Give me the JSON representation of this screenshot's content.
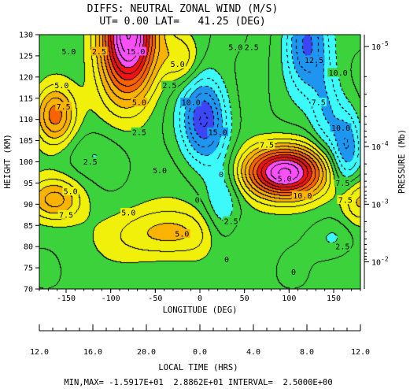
{
  "header": {
    "title_line1": "DIFFS: NEUTRAL ZONAL WIND (M/S)",
    "title_line2": "UT= 0.00 LAT=   41.25 (DEG)"
  },
  "footer": {
    "summary": "MIN,MAX= -1.5917E+01  2.8862E+01 INTERVAL=  2.5000E+00"
  },
  "chart_data": {
    "type": "heatmap",
    "subtype": "filled-contour",
    "title": "DIFFS: NEUTRAL ZONAL WIND (M/S)",
    "subtitle": "UT= 0.00 LAT=   41.25 (DEG)",
    "xlabel": "LONGITUDE (DEG)",
    "ylabel": "HEIGHT (KM)",
    "right_axis_label": "PRESSURE (Mb)",
    "top_axis_label": "LOCAL TIME (HRS)",
    "xlim": [
      -180,
      180
    ],
    "ylim": [
      70,
      130
    ],
    "x_ticks": [
      -150,
      -100,
      -50,
      0,
      50,
      100,
      150
    ],
    "x_tick_labels": [
      "-150",
      "-100",
      "-50",
      "0",
      "50",
      "100",
      "150"
    ],
    "y_ticks": [
      70,
      75,
      80,
      85,
      90,
      95,
      100,
      105,
      110,
      115,
      120,
      125,
      130
    ],
    "y_tick_labels": [
      "70",
      "75",
      "80",
      "85",
      "90",
      "95",
      "100",
      "105",
      "110",
      "115",
      "120",
      "125",
      "130"
    ],
    "pressure_ticks": [
      {
        "label": "10",
        "exp": "-5",
        "height": 127.2
      },
      {
        "label": "10",
        "exp": "-4",
        "height": 103.6
      },
      {
        "label": "10",
        "exp": "-3",
        "height": 90.0
      },
      {
        "label": "10",
        "exp": "-2",
        "height": 76.4
      }
    ],
    "local_time_ticks": [
      "12.0",
      "16.0",
      "20.0",
      "0.0",
      "4.0",
      "8.0",
      "12.0"
    ],
    "min": -15.917,
    "max": 28.862,
    "interval": 2.5,
    "grid": false,
    "colorscale": [
      {
        "min": -20.0,
        "max": -15.0,
        "color": "#d400f0"
      },
      {
        "min": -15.0,
        "max": -10.0,
        "color": "#3c46f5"
      },
      {
        "min": -10.0,
        "max": -5.0,
        "color": "#1e96f0"
      },
      {
        "min": -5.0,
        "max": 0.0,
        "color": "#3cfafa"
      },
      {
        "min": 0.0,
        "max": 5.0,
        "color": "#3cd23c"
      },
      {
        "min": 5.0,
        "max": 10.0,
        "color": "#f0f00a"
      },
      {
        "min": 10.0,
        "max": 15.0,
        "color": "#fab400"
      },
      {
        "min": 15.0,
        "max": 20.0,
        "color": "#fa6400"
      },
      {
        "min": 20.0,
        "max": 25.0,
        "color": "#f01414"
      },
      {
        "min": 25.0,
        "max": 35.0,
        "color": "#fa50fa"
      }
    ],
    "features": [
      {
        "lon": 95,
        "h": 97.5,
        "value": 27,
        "sx": 32,
        "sy": 4.2,
        "rot": -0.5
      },
      {
        "lon": -80,
        "h": 130,
        "value": 30,
        "sx": 22,
        "sy": 10,
        "rot": 0.9
      },
      {
        "lon": 5,
        "h": 110,
        "value": -16,
        "sx": 18,
        "sy": 7,
        "rot": 0.2
      },
      {
        "lon": 120,
        "h": 128,
        "value": -14,
        "sx": 17,
        "sy": 8,
        "rot": 0.7
      },
      {
        "lon": 165,
        "h": 103,
        "value": -11,
        "sx": 12,
        "sy": 7,
        "rot": 0
      },
      {
        "lon": 25,
        "h": 89,
        "value": -6,
        "sx": 14,
        "sy": 8,
        "rot": -0.4
      },
      {
        "lon": 142,
        "h": 112,
        "value": -7,
        "sx": 12,
        "sy": 7,
        "rot": 0.5
      },
      {
        "lon": -162,
        "h": 111,
        "value": 14,
        "sx": 16,
        "sy": 5,
        "rot": 0
      },
      {
        "lon": -162,
        "h": 91,
        "value": 10,
        "sx": 22,
        "sy": 3.5,
        "rot": 0
      },
      {
        "lon": -35,
        "h": 83,
        "value": 8,
        "sx": 48,
        "sy": 4.5,
        "rot": -0.15
      },
      {
        "lon": -20,
        "h": 124,
        "value": 6.5,
        "sx": 14,
        "sy": 4,
        "rot": 0.3
      },
      {
        "lon": 178,
        "h": 91,
        "value": 9,
        "sx": 15,
        "sy": 4,
        "rot": 0
      },
      {
        "lon": -120,
        "h": 102,
        "value": -3,
        "sx": 25,
        "sy": 4,
        "rot": -0.3
      },
      {
        "lon": 150,
        "h": 82,
        "value": -3.5,
        "sx": 16,
        "sy": 3,
        "rot": 0
      }
    ],
    "contour_labels": [
      {
        "text": "5.0",
        "lon": -155,
        "h": 118
      },
      {
        "text": "7.5",
        "lon": -153,
        "h": 113
      },
      {
        "text": "5.0",
        "lon": -147,
        "h": 126
      },
      {
        "text": "2.5",
        "lon": -113,
        "h": 126
      },
      {
        "text": "15.0",
        "lon": -72,
        "h": 126
      },
      {
        "text": "5.0",
        "lon": -68,
        "h": 114
      },
      {
        "text": "2.5",
        "lon": -34,
        "h": 118
      },
      {
        "text": "5.0",
        "lon": -25,
        "h": 123
      },
      {
        "text": "10.0",
        "lon": -10,
        "h": 114
      },
      {
        "text": "2.5",
        "lon": -68,
        "h": 107
      },
      {
        "text": "2.5",
        "lon": -123,
        "h": 100
      },
      {
        "text": "5.0",
        "lon": -45,
        "h": 98
      },
      {
        "text": "5.0",
        "lon": -145,
        "h": 93
      },
      {
        "text": "7.5",
        "lon": -150,
        "h": 87.5
      },
      {
        "text": "5.0",
        "lon": -80,
        "h": 88
      },
      {
        "text": "5.0",
        "lon": -20,
        "h": 83
      },
      {
        "text": "15.0",
        "lon": 20,
        "h": 107
      },
      {
        "text": "0",
        "lon": -3,
        "h": 91
      },
      {
        "text": "0",
        "lon": 24,
        "h": 97
      },
      {
        "text": "2.5",
        "lon": 35,
        "h": 86
      },
      {
        "text": "0",
        "lon": 30,
        "h": 77
      },
      {
        "text": "7.5",
        "lon": 75,
        "h": 104
      },
      {
        "text": "5.0",
        "lon": 95,
        "h": 96
      },
      {
        "text": "10.0",
        "lon": 115,
        "h": 92
      },
      {
        "text": "7.5",
        "lon": 160,
        "h": 95
      },
      {
        "text": "7.5",
        "lon": 163,
        "h": 91
      },
      {
        "text": "5.0",
        "lon": 40,
        "h": 127
      },
      {
        "text": "2.5",
        "lon": 58,
        "h": 127
      },
      {
        "text": "12.5",
        "lon": 128,
        "h": 124
      },
      {
        "text": "10.0",
        "lon": 155,
        "h": 121
      },
      {
        "text": "7.5",
        "lon": 133,
        "h": 114
      },
      {
        "text": "10.0",
        "lon": 158,
        "h": 108
      },
      {
        "text": "2.5",
        "lon": 160,
        "h": 80
      },
      {
        "text": "0",
        "lon": 105,
        "h": 74
      }
    ]
  }
}
